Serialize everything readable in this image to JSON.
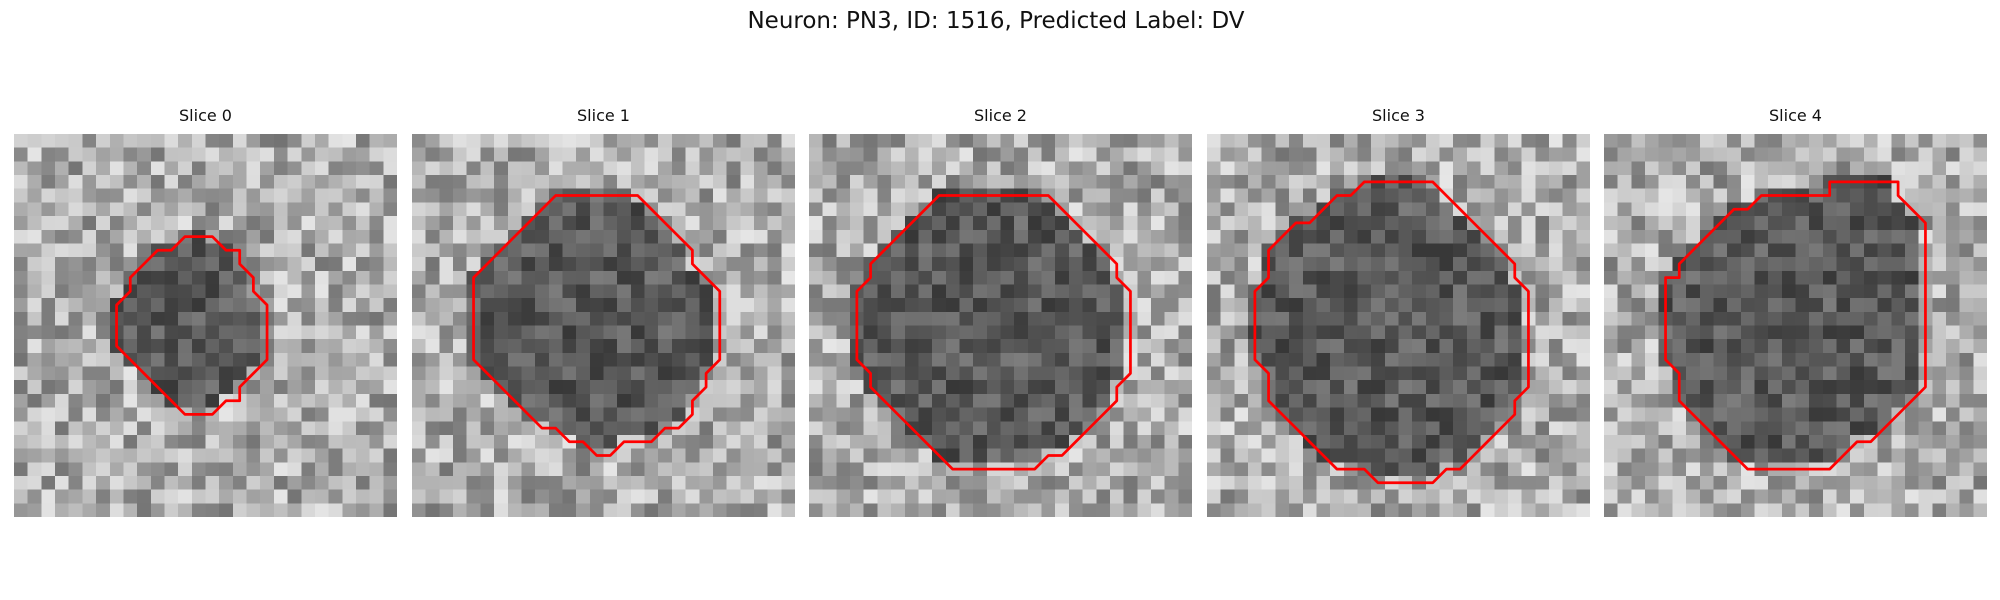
{
  "figure": {
    "title": "Neuron: PN3, ID: 1516, Predicted Label: DV"
  },
  "panels": [
    {
      "title": "Slice 0",
      "contour": [
        [
          14.5,
          7.5
        ],
        [
          12.5,
          7.5
        ],
        [
          11.5,
          8.5
        ],
        [
          10.5,
          8.5
        ],
        [
          9.5,
          9.5
        ],
        [
          8.5,
          10.5
        ],
        [
          8.5,
          11.5
        ],
        [
          7.5,
          12.5
        ],
        [
          7.5,
          14.5
        ],
        [
          7.5,
          15.5
        ],
        [
          8.5,
          16.5
        ],
        [
          9.5,
          17.5
        ],
        [
          10.5,
          18.5
        ],
        [
          11.5,
          19.5
        ],
        [
          12.5,
          20.5
        ],
        [
          14.5,
          20.5
        ],
        [
          15.5,
          19.5
        ],
        [
          16.5,
          19.5
        ],
        [
          16.5,
          18.5
        ],
        [
          17.5,
          17.5
        ],
        [
          18.5,
          16.5
        ],
        [
          18.5,
          14.5
        ],
        [
          18.5,
          12.5
        ],
        [
          17.5,
          11.5
        ],
        [
          17.5,
          10.5
        ],
        [
          16.5,
          9.5
        ],
        [
          16.5,
          8.5
        ],
        [
          15.5,
          8.5
        ]
      ]
    },
    {
      "title": "Slice 1",
      "contour": [
        [
          14.5,
          4.5
        ],
        [
          10.5,
          4.5
        ],
        [
          9.5,
          5.5
        ],
        [
          8.5,
          6.5
        ],
        [
          7.5,
          7.5
        ],
        [
          6.5,
          8.5
        ],
        [
          5.5,
          9.5
        ],
        [
          4.5,
          10.5
        ],
        [
          4.5,
          12.5
        ],
        [
          4.5,
          14.5
        ],
        [
          4.5,
          16.5
        ],
        [
          5.5,
          17.5
        ],
        [
          6.5,
          18.5
        ],
        [
          7.5,
          19.5
        ],
        [
          8.5,
          20.5
        ],
        [
          9.5,
          21.5
        ],
        [
          10.5,
          21.5
        ],
        [
          11.5,
          22.5
        ],
        [
          12.5,
          22.5
        ],
        [
          13.5,
          23.5
        ],
        [
          14.5,
          23.5
        ],
        [
          15.5,
          22.5
        ],
        [
          17.5,
          22.5
        ],
        [
          18.5,
          21.5
        ],
        [
          19.5,
          21.5
        ],
        [
          20.5,
          20.5
        ],
        [
          20.5,
          19.5
        ],
        [
          21.5,
          18.5
        ],
        [
          21.5,
          17.5
        ],
        [
          22.5,
          16.5
        ],
        [
          22.5,
          14.5
        ],
        [
          22.5,
          12.5
        ],
        [
          22.5,
          11.5
        ],
        [
          21.5,
          10.5
        ],
        [
          20.5,
          9.5
        ],
        [
          20.5,
          8.5
        ],
        [
          19.5,
          7.5
        ],
        [
          18.5,
          6.5
        ],
        [
          17.5,
          5.5
        ],
        [
          16.5,
          4.5
        ]
      ]
    },
    {
      "title": "Slice 2",
      "contour": [
        [
          16.5,
          4.5
        ],
        [
          12.5,
          4.5
        ],
        [
          9.5,
          4.5
        ],
        [
          8.5,
          5.5
        ],
        [
          7.5,
          6.5
        ],
        [
          6.5,
          7.5
        ],
        [
          5.5,
          8.5
        ],
        [
          4.5,
          9.5
        ],
        [
          4.5,
          10.5
        ],
        [
          3.5,
          11.5
        ],
        [
          3.5,
          13.5
        ],
        [
          3.5,
          16.5
        ],
        [
          4.5,
          17.5
        ],
        [
          4.5,
          18.5
        ],
        [
          5.5,
          19.5
        ],
        [
          6.5,
          20.5
        ],
        [
          7.5,
          21.5
        ],
        [
          8.5,
          22.5
        ],
        [
          9.5,
          23.5
        ],
        [
          10.5,
          24.5
        ],
        [
          12.5,
          24.5
        ],
        [
          16.5,
          24.5
        ],
        [
          17.5,
          23.5
        ],
        [
          18.5,
          23.5
        ],
        [
          19.5,
          22.5
        ],
        [
          20.5,
          21.5
        ],
        [
          21.5,
          20.5
        ],
        [
          22.5,
          19.5
        ],
        [
          22.5,
          18.5
        ],
        [
          23.5,
          17.5
        ],
        [
          23.5,
          16.5
        ],
        [
          23.5,
          13.5
        ],
        [
          23.5,
          11.5
        ],
        [
          22.5,
          10.5
        ],
        [
          22.5,
          9.5
        ],
        [
          21.5,
          8.5
        ],
        [
          20.5,
          7.5
        ],
        [
          19.5,
          6.5
        ],
        [
          18.5,
          5.5
        ],
        [
          17.5,
          4.5
        ]
      ]
    },
    {
      "title": "Slice 3",
      "contour": [
        [
          16.5,
          3.5
        ],
        [
          12.5,
          3.5
        ],
        [
          11.5,
          3.5
        ],
        [
          10.5,
          4.5
        ],
        [
          9.5,
          4.5
        ],
        [
          8.5,
          5.5
        ],
        [
          7.5,
          6.5
        ],
        [
          6.5,
          6.5
        ],
        [
          5.5,
          7.5
        ],
        [
          4.5,
          8.5
        ],
        [
          4.5,
          10.5
        ],
        [
          3.5,
          11.5
        ],
        [
          3.5,
          14.5
        ],
        [
          3.5,
          16.5
        ],
        [
          4.5,
          17.5
        ],
        [
          4.5,
          19.5
        ],
        [
          5.5,
          20.5
        ],
        [
          6.5,
          21.5
        ],
        [
          7.5,
          22.5
        ],
        [
          8.5,
          23.5
        ],
        [
          9.5,
          24.5
        ],
        [
          11.5,
          24.5
        ],
        [
          12.5,
          25.5
        ],
        [
          16.5,
          25.5
        ],
        [
          17.5,
          24.5
        ],
        [
          18.5,
          24.5
        ],
        [
          19.5,
          23.5
        ],
        [
          20.5,
          22.5
        ],
        [
          21.5,
          21.5
        ],
        [
          22.5,
          20.5
        ],
        [
          22.5,
          19.5
        ],
        [
          23.5,
          18.5
        ],
        [
          23.5,
          16.5
        ],
        [
          23.5,
          14.5
        ],
        [
          23.5,
          11.5
        ],
        [
          22.5,
          10.5
        ],
        [
          22.5,
          9.5
        ],
        [
          21.5,
          8.5
        ],
        [
          20.5,
          7.5
        ],
        [
          19.5,
          6.5
        ],
        [
          18.5,
          5.5
        ],
        [
          17.5,
          4.5
        ]
      ]
    },
    {
      "title": "Slice 4",
      "contour": [
        [
          16.5,
          4.5
        ],
        [
          12.5,
          4.5
        ],
        [
          11.5,
          4.5
        ],
        [
          10.5,
          5.5
        ],
        [
          9.5,
          5.5
        ],
        [
          8.5,
          6.5
        ],
        [
          7.5,
          7.5
        ],
        [
          6.5,
          8.5
        ],
        [
          5.5,
          9.5
        ],
        [
          5.5,
          10.5
        ],
        [
          4.5,
          10.5
        ],
        [
          4.5,
          12.5
        ],
        [
          4.5,
          14.5
        ],
        [
          4.5,
          16.5
        ],
        [
          5.5,
          17.5
        ],
        [
          5.5,
          19.5
        ],
        [
          6.5,
          20.5
        ],
        [
          7.5,
          21.5
        ],
        [
          8.5,
          22.5
        ],
        [
          9.5,
          23.5
        ],
        [
          10.5,
          24.5
        ],
        [
          12.5,
          24.5
        ],
        [
          16.5,
          24.5
        ],
        [
          17.5,
          23.5
        ],
        [
          18.5,
          22.5
        ],
        [
          19.5,
          22.5
        ],
        [
          20.5,
          21.5
        ],
        [
          21.5,
          20.5
        ],
        [
          22.5,
          19.5
        ],
        [
          23.5,
          18.5
        ],
        [
          23.5,
          17.5
        ],
        [
          23.5,
          14.5
        ],
        [
          23.5,
          11.5
        ],
        [
          23.5,
          6.5
        ],
        [
          22.5,
          5.5
        ],
        [
          21.5,
          4.5
        ],
        [
          21.5,
          3.5
        ],
        [
          16.5,
          3.5
        ]
      ]
    }
  ],
  "colors": {
    "contour": "#ff0000"
  }
}
